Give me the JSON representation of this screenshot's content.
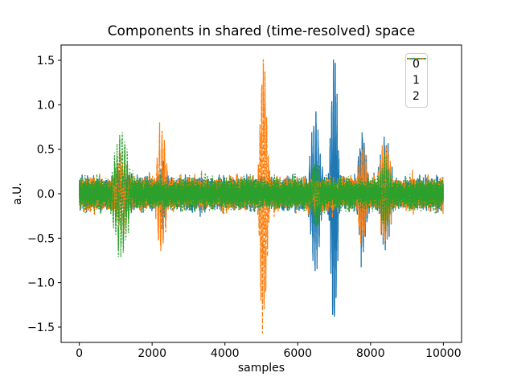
{
  "chart_data": {
    "type": "line",
    "title": "Components in shared (time-resolved) space",
    "xlabel": "samples",
    "ylabel": "a.U.",
    "grid": false,
    "axis_color": "#000000",
    "n_samples": 10000,
    "xlim": [
      -500,
      10500
    ],
    "ylim": [
      -1.672,
      1.672
    ],
    "x_ticks": [
      {
        "value": 0,
        "label": "0"
      },
      {
        "value": 2000,
        "label": "2000"
      },
      {
        "value": 4000,
        "label": "4000"
      },
      {
        "value": 6000,
        "label": "6000"
      },
      {
        "value": 8000,
        "label": "8000"
      },
      {
        "value": 10000,
        "label": "10000"
      }
    ],
    "y_ticks": [
      {
        "value": 1.5,
        "label": "1.5"
      },
      {
        "value": 1.0,
        "label": "1.0"
      },
      {
        "value": 0.5,
        "label": "0.5"
      },
      {
        "value": 0.0,
        "label": "0.0"
      },
      {
        "value": -0.5,
        "label": "−0.5"
      },
      {
        "value": -1.0,
        "label": "−1.0"
      },
      {
        "value": -1.5,
        "label": "−1.5"
      }
    ],
    "legend": {
      "location": "upper right",
      "entries": [
        "0",
        "1",
        "2"
      ]
    },
    "series": [
      {
        "name": "0",
        "color": "#1f77b4",
        "linestyle": "solid",
        "noise_sigma": 0.075,
        "bursts": [
          {
            "center": 2300,
            "half_width": 150,
            "amplitude": 0.28,
            "period": 60
          },
          {
            "center": 6480,
            "half_width": 260,
            "amplitude": 0.8,
            "period": 58
          },
          {
            "center": 7000,
            "half_width": 190,
            "amplitude": 1.45,
            "period": 48
          },
          {
            "center": 7780,
            "half_width": 230,
            "amplitude": 0.6,
            "period": 55
          },
          {
            "center": 8400,
            "half_width": 270,
            "amplitude": 0.58,
            "period": 55
          }
        ]
      },
      {
        "name": "1",
        "color": "#ff7f0e",
        "linestyle": "dashed",
        "noise_sigma": 0.075,
        "bursts": [
          {
            "center": 1150,
            "half_width": 300,
            "amplitude": 0.32,
            "period": 66
          },
          {
            "center": 2260,
            "half_width": 260,
            "amplitude": 0.6,
            "period": 68
          },
          {
            "center": 5060,
            "half_width": 200,
            "amplitude": 1.45,
            "period": 46
          },
          {
            "center": 7780,
            "half_width": 230,
            "amplitude": 0.45,
            "period": 55
          },
          {
            "center": 8400,
            "half_width": 270,
            "amplitude": 0.45,
            "period": 55
          }
        ]
      },
      {
        "name": "2",
        "color": "#2ca02c",
        "linestyle": "dotted",
        "noise_sigma": 0.075,
        "bursts": [
          {
            "center": 1150,
            "half_width": 370,
            "amplitude": 0.62,
            "period": 70
          },
          {
            "center": 6500,
            "half_width": 220,
            "amplitude": 0.32,
            "period": 60
          },
          {
            "center": 8400,
            "half_width": 260,
            "amplitude": 0.3,
            "period": 55
          }
        ]
      }
    ]
  }
}
